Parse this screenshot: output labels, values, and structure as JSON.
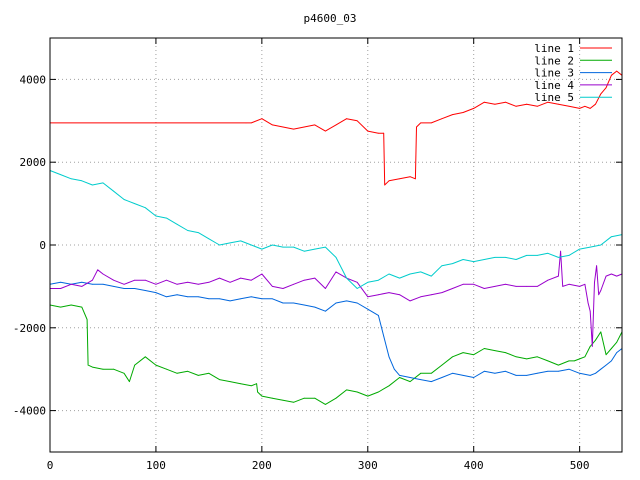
{
  "chart_data": {
    "type": "line",
    "title": "p4600_03",
    "xlabel": "",
    "ylabel": "",
    "xlim": [
      0,
      540
    ],
    "ylim": [
      -5000,
      5000
    ],
    "grid": true,
    "legend_position": "top-right",
    "x_ticks": [
      0,
      100,
      200,
      300,
      400,
      500
    ],
    "y_ticks": [
      -4000,
      -2000,
      0,
      2000,
      4000
    ],
    "x_tick_labels": [
      "0",
      "100",
      "200",
      "300",
      "400",
      "500"
    ],
    "y_tick_labels": [
      "-4000",
      "-2000",
      "0",
      "2000",
      "4000"
    ],
    "series": [
      {
        "name": "line 1",
        "color": "#ff0000",
        "x": [
          0,
          185,
          190,
          200,
          210,
          220,
          230,
          240,
          250,
          260,
          270,
          280,
          290,
          300,
          310,
          315,
          316,
          320,
          330,
          340,
          345,
          346,
          350,
          360,
          370,
          380,
          390,
          400,
          410,
          420,
          430,
          440,
          450,
          460,
          470,
          480,
          490,
          500,
          505,
          510,
          515,
          520,
          525,
          530,
          535,
          540
        ],
        "y": [
          2950,
          2950,
          2950,
          3050,
          2900,
          2850,
          2800,
          2850,
          2900,
          2750,
          2900,
          3050,
          3000,
          2750,
          2700,
          2700,
          1450,
          1550,
          1600,
          1650,
          1600,
          2850,
          2950,
          2950,
          3050,
          3150,
          3200,
          3300,
          3450,
          3400,
          3450,
          3350,
          3400,
          3350,
          3450,
          3400,
          3350,
          3300,
          3350,
          3300,
          3400,
          3650,
          3800,
          4100,
          4200,
          4100
        ]
      },
      {
        "name": "line 2",
        "color": "#00aa00",
        "x": [
          0,
          10,
          20,
          30,
          35,
          36,
          40,
          50,
          60,
          70,
          75,
          80,
          90,
          100,
          110,
          120,
          130,
          140,
          150,
          160,
          170,
          180,
          190,
          195,
          196,
          200,
          210,
          220,
          230,
          240,
          250,
          260,
          270,
          280,
          290,
          300,
          310,
          320,
          330,
          340,
          350,
          360,
          370,
          380,
          390,
          400,
          410,
          420,
          430,
          440,
          450,
          460,
          470,
          480,
          490,
          495,
          500,
          505,
          510,
          515,
          520,
          525,
          530,
          535,
          540
        ],
        "y": [
          -1450,
          -1500,
          -1450,
          -1500,
          -1800,
          -2900,
          -2950,
          -3000,
          -3000,
          -3100,
          -3300,
          -2900,
          -2700,
          -2900,
          -3000,
          -3100,
          -3050,
          -3150,
          -3100,
          -3250,
          -3300,
          -3350,
          -3400,
          -3350,
          -3550,
          -3650,
          -3700,
          -3750,
          -3800,
          -3700,
          -3700,
          -3850,
          -3700,
          -3500,
          -3550,
          -3650,
          -3550,
          -3400,
          -3200,
          -3300,
          -3100,
          -3100,
          -2900,
          -2700,
          -2600,
          -2650,
          -2500,
          -2550,
          -2600,
          -2700,
          -2750,
          -2700,
          -2800,
          -2900,
          -2800,
          -2800,
          -2750,
          -2700,
          -2450,
          -2300,
          -2100,
          -2650,
          -2500,
          -2350,
          -2100
        ]
      },
      {
        "name": "line 3",
        "color": "#0066dd",
        "x": [
          0,
          10,
          20,
          30,
          40,
          50,
          60,
          70,
          80,
          90,
          100,
          110,
          120,
          130,
          140,
          150,
          160,
          170,
          180,
          190,
          200,
          210,
          220,
          230,
          240,
          250,
          260,
          270,
          280,
          290,
          300,
          310,
          315,
          320,
          325,
          330,
          340,
          350,
          360,
          370,
          380,
          390,
          400,
          410,
          420,
          430,
          440,
          450,
          460,
          470,
          480,
          490,
          500,
          510,
          515,
          520,
          525,
          530,
          535,
          540
        ],
        "y": [
          -950,
          -900,
          -950,
          -900,
          -950,
          -950,
          -1000,
          -1050,
          -1050,
          -1100,
          -1150,
          -1250,
          -1200,
          -1250,
          -1250,
          -1300,
          -1300,
          -1350,
          -1300,
          -1250,
          -1300,
          -1300,
          -1400,
          -1400,
          -1450,
          -1500,
          -1600,
          -1400,
          -1350,
          -1400,
          -1550,
          -1700,
          -2200,
          -2700,
          -3000,
          -3150,
          -3200,
          -3250,
          -3300,
          -3200,
          -3100,
          -3150,
          -3200,
          -3050,
          -3100,
          -3050,
          -3150,
          -3150,
          -3100,
          -3050,
          -3050,
          -3000,
          -3100,
          -3150,
          -3100,
          -3000,
          -2900,
          -2800,
          -2600,
          -2500
        ]
      },
      {
        "name": "line 4",
        "color": "#9900cc",
        "x": [
          0,
          10,
          20,
          30,
          40,
          45,
          50,
          60,
          70,
          80,
          90,
          100,
          110,
          120,
          130,
          140,
          150,
          160,
          170,
          180,
          190,
          200,
          210,
          220,
          230,
          240,
          250,
          260,
          270,
          280,
          290,
          300,
          310,
          320,
          330,
          340,
          350,
          360,
          370,
          380,
          390,
          400,
          410,
          420,
          430,
          440,
          450,
          460,
          470,
          480,
          482,
          484,
          490,
          500,
          505,
          508,
          510,
          512,
          514,
          516,
          518,
          520,
          525,
          530,
          535,
          540
        ],
        "y": [
          -1050,
          -1050,
          -950,
          -1000,
          -850,
          -600,
          -700,
          -850,
          -950,
          -850,
          -850,
          -950,
          -850,
          -950,
          -900,
          -950,
          -900,
          -800,
          -900,
          -800,
          -850,
          -700,
          -1000,
          -1050,
          -950,
          -850,
          -800,
          -1050,
          -650,
          -800,
          -900,
          -1250,
          -1200,
          -1150,
          -1200,
          -1350,
          -1250,
          -1200,
          -1150,
          -1050,
          -950,
          -950,
          -1050,
          -1000,
          -950,
          -1000,
          -1000,
          -1000,
          -850,
          -750,
          -150,
          -1000,
          -950,
          -1000,
          -950,
          -1400,
          -1600,
          -2450,
          -900,
          -500,
          -1200,
          -1100,
          -750,
          -700,
          -750,
          -700
        ]
      },
      {
        "name": "line 5",
        "color": "#00cccc",
        "x": [
          0,
          10,
          20,
          30,
          40,
          50,
          60,
          70,
          80,
          90,
          100,
          110,
          120,
          130,
          140,
          150,
          160,
          170,
          180,
          190,
          200,
          210,
          220,
          230,
          240,
          250,
          260,
          270,
          280,
          290,
          300,
          310,
          320,
          330,
          340,
          350,
          360,
          370,
          380,
          390,
          400,
          410,
          420,
          430,
          440,
          450,
          460,
          470,
          480,
          490,
          500,
          510,
          520,
          530,
          540
        ],
        "y": [
          1800,
          1700,
          1600,
          1550,
          1450,
          1500,
          1300,
          1100,
          1000,
          900,
          700,
          650,
          500,
          350,
          300,
          150,
          0,
          50,
          100,
          0,
          -100,
          0,
          -50,
          -50,
          -150,
          -100,
          -50,
          -300,
          -800,
          -1050,
          -900,
          -850,
          -700,
          -800,
          -700,
          -650,
          -750,
          -500,
          -450,
          -350,
          -400,
          -350,
          -300,
          -300,
          -350,
          -250,
          -250,
          -200,
          -300,
          -250,
          -100,
          -50,
          0,
          200,
          250
        ]
      }
    ]
  }
}
